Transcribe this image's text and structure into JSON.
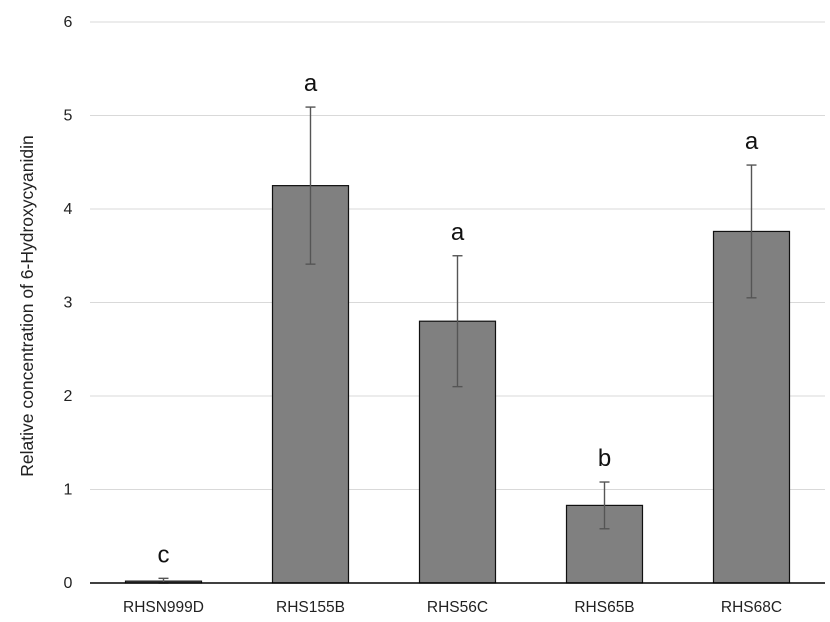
{
  "chart_data": {
    "type": "bar",
    "title": "",
    "xlabel": "",
    "ylabel": "Relative concentration of 6-Hydroxycyanidin",
    "ylim": [
      0,
      6
    ],
    "yticks": [
      0,
      1,
      2,
      3,
      4,
      5,
      6
    ],
    "grid": true,
    "legend": "none",
    "categories": [
      "RHSN999D",
      "RHS155B",
      "RHS56C",
      "RHS65B",
      "RHS68C"
    ],
    "values": [
      0.02,
      4.25,
      2.8,
      0.83,
      3.76
    ],
    "error": [
      0.03,
      0.84,
      0.7,
      0.25,
      0.71
    ],
    "significance_letters": [
      "c",
      "a",
      "a",
      "b",
      "a"
    ],
    "colors": {
      "bar_fill": "#808080",
      "bar_stroke": "#111111",
      "error_bar": "#555555",
      "gridline": "#d9d9d9",
      "axis": "#000000"
    }
  }
}
